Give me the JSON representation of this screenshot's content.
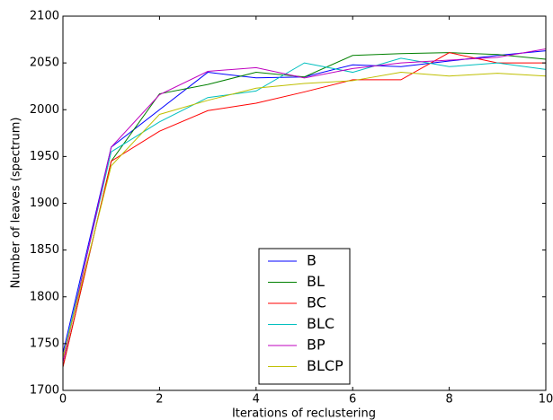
{
  "chart_data": {
    "type": "line",
    "xlabel": "Iterations of reclustering",
    "ylabel": "Number of leaves (spectrum)",
    "x": [
      0,
      1,
      2,
      3,
      4,
      5,
      6,
      7,
      8,
      9,
      10
    ],
    "series": [
      {
        "name": "B",
        "color": "#0000ff",
        "values": [
          1740,
          1960,
          2000,
          2040,
          2034,
          2035,
          2048,
          2046,
          2052,
          2058,
          2063
        ]
      },
      {
        "name": "BL",
        "color": "#008000",
        "values": [
          1725,
          1945,
          2017,
          2027,
          2040,
          2035,
          2058,
          2060,
          2061,
          2059,
          2054
        ]
      },
      {
        "name": "BC",
        "color": "#ff0000",
        "values": [
          1725,
          1945,
          1977,
          1999,
          2007,
          2019,
          2032,
          2032,
          2061,
          2050,
          2050
        ]
      },
      {
        "name": "BLC",
        "color": "#00bfbf",
        "values": [
          1735,
          1955,
          1987,
          2013,
          2020,
          2050,
          2040,
          2055,
          2046,
          2050,
          2043
        ]
      },
      {
        "name": "BP",
        "color": "#bf00bf",
        "values": [
          1730,
          1960,
          2016,
          2041,
          2045,
          2034,
          2044,
          2050,
          2053,
          2056,
          2065
        ]
      },
      {
        "name": "BLCP",
        "color": "#bfbf00",
        "values": [
          1735,
          1940,
          1995,
          2010,
          2023,
          2028,
          2031,
          2040,
          2036,
          2039,
          2036
        ]
      }
    ],
    "xlim": [
      0,
      10
    ],
    "xticks": [
      0,
      2,
      4,
      6,
      8,
      10
    ],
    "ylim": [
      1700,
      2100
    ],
    "yticks": [
      1700,
      1750,
      1800,
      1850,
      1900,
      1950,
      2000,
      2050,
      2100
    ],
    "legend": "lower center",
    "grid": false
  }
}
